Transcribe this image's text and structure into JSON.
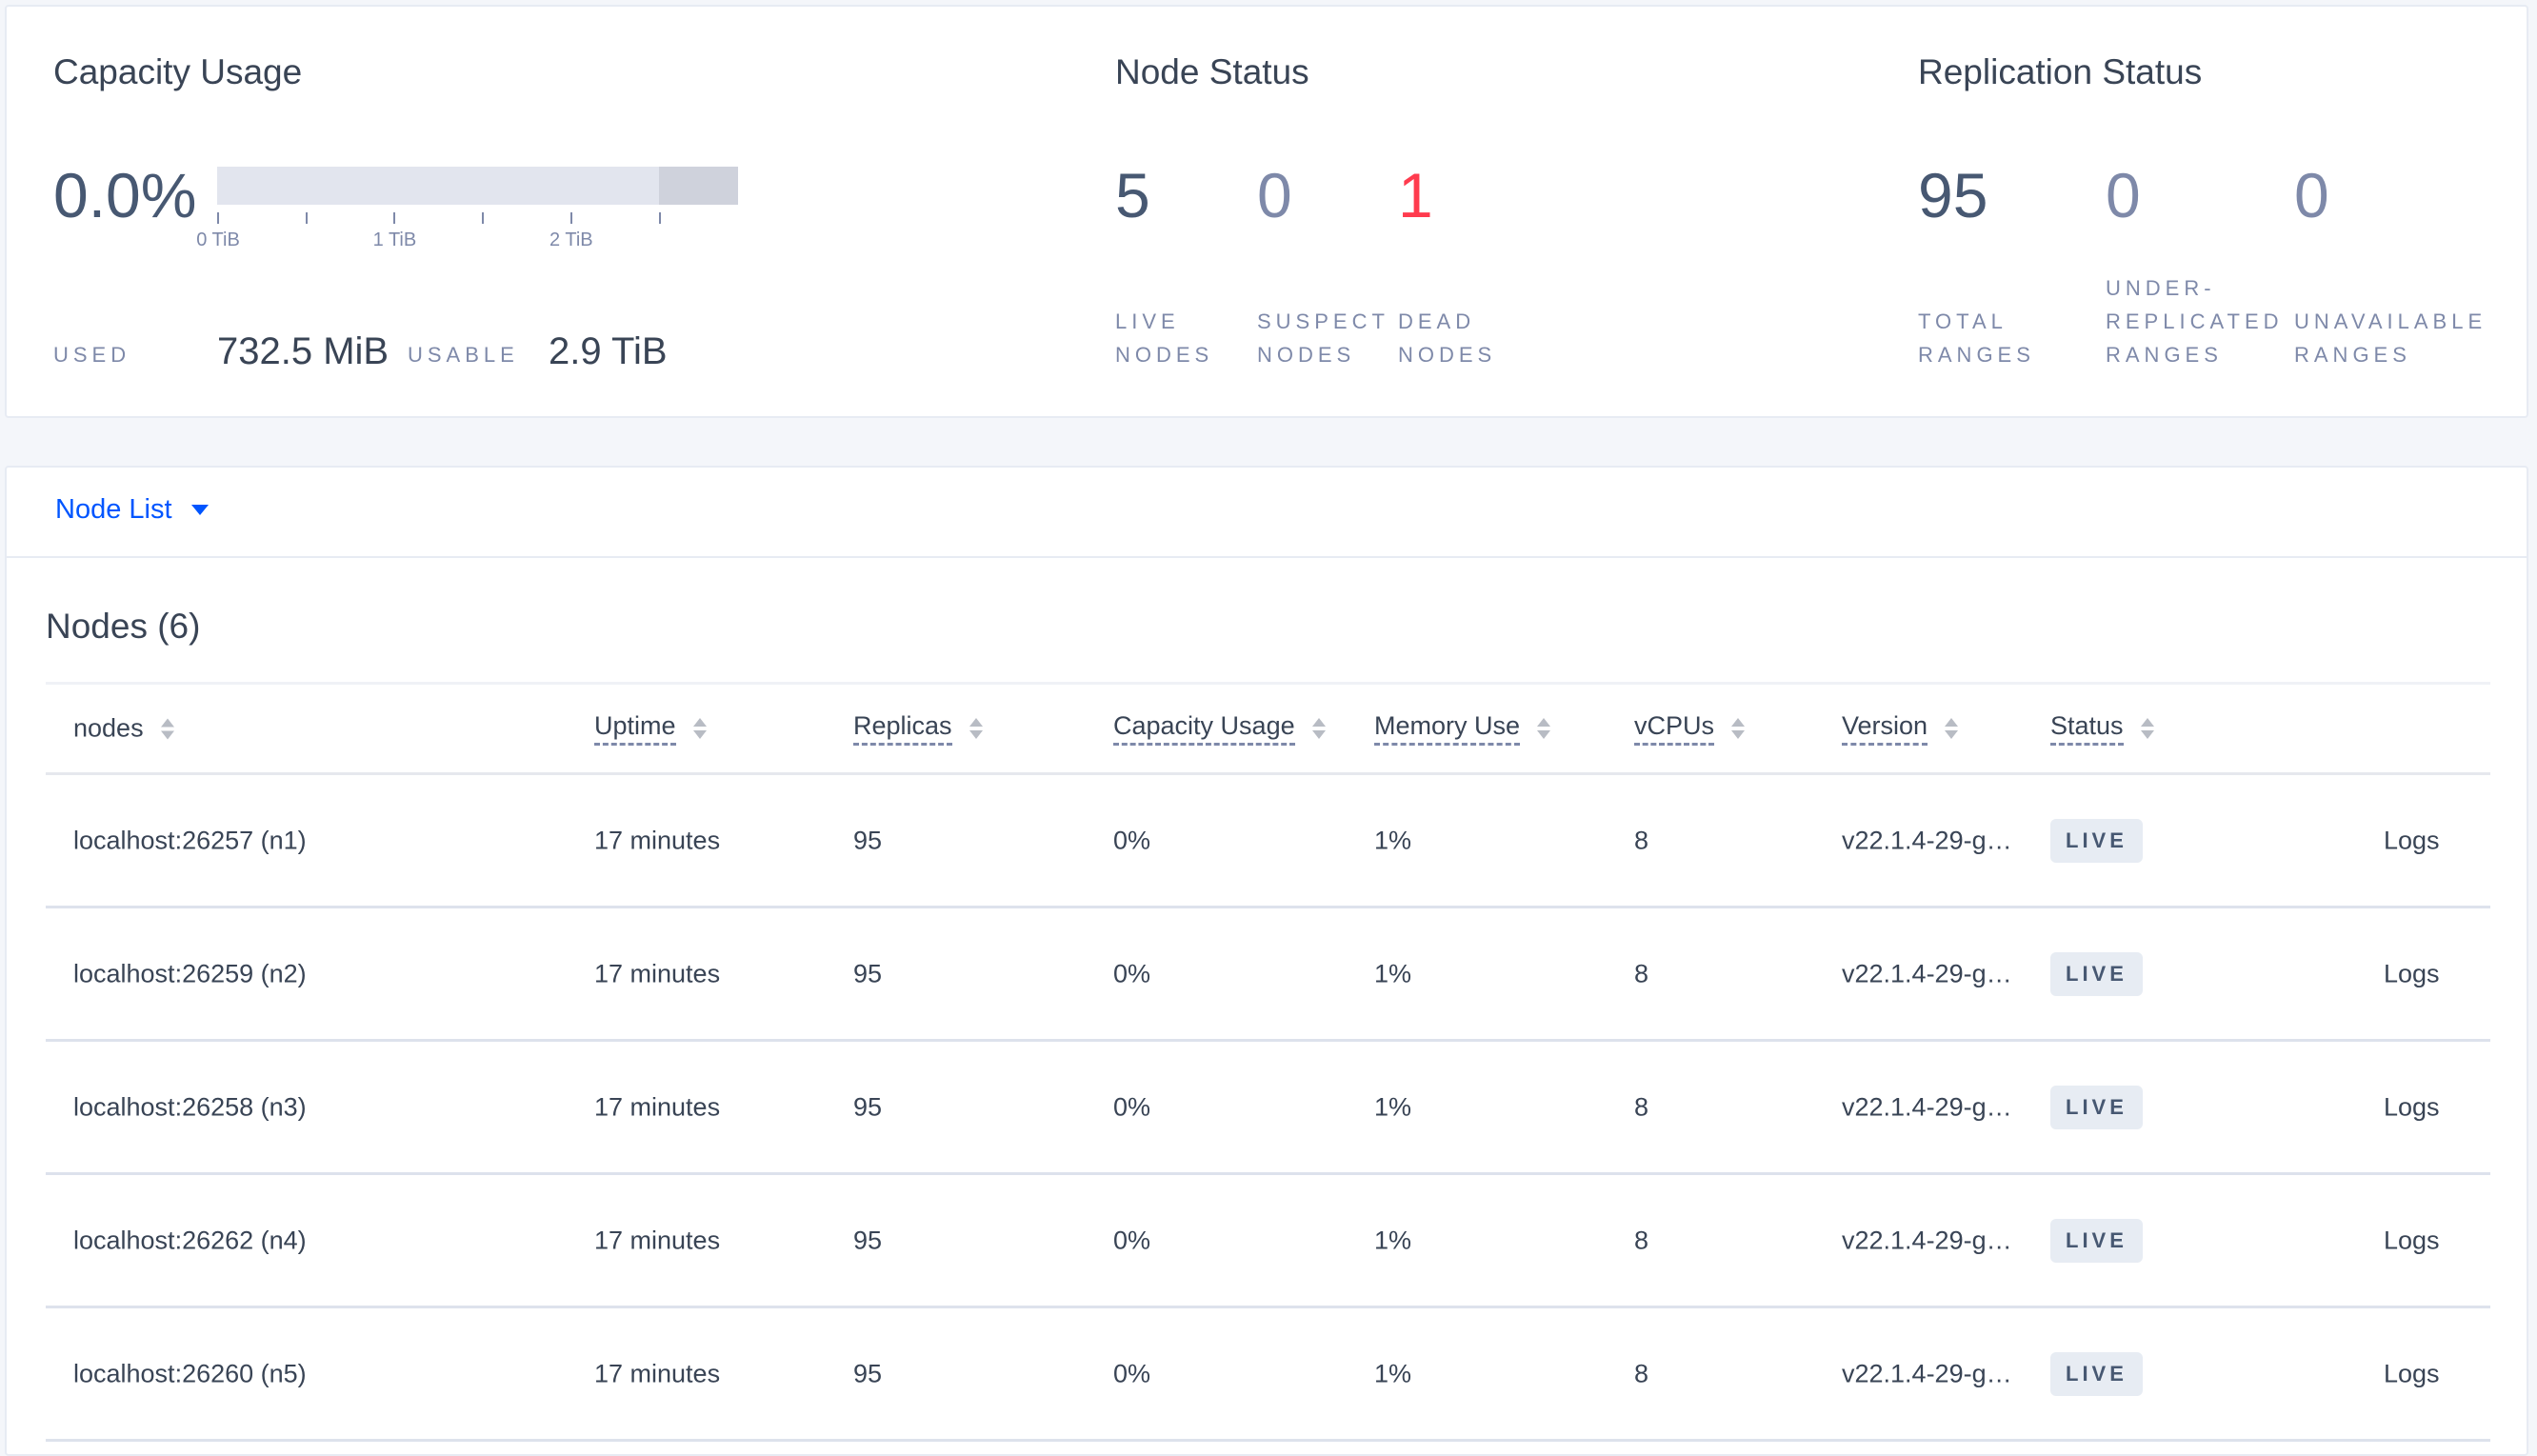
{
  "capacity": {
    "title": "Capacity Usage",
    "percent": "0.0%",
    "used_fraction": 0.0,
    "usable_marker_tib": 2.5,
    "axis_max_tib": 2.95,
    "ticks": [
      "0 TiB",
      "1 TiB",
      "2 TiB"
    ],
    "used_label": "USED",
    "used_value": "732.5 MiB",
    "usable_label": "USABLE",
    "usable_value": "2.9 TiB"
  },
  "node_status": {
    "title": "Node Status",
    "stats": [
      {
        "value": "5",
        "l1": "LIVE",
        "l2": "NODES",
        "color": "#475872"
      },
      {
        "value": "0",
        "l1": "SUSPECT",
        "l2": "NODES",
        "color": "#7e89a9"
      },
      {
        "value": "1",
        "l1": "DEAD",
        "l2": "NODES",
        "color": "#ff3b4e"
      }
    ]
  },
  "replication": {
    "title": "Replication Status",
    "stats": [
      {
        "value": "95",
        "l0": "",
        "l1": "TOTAL",
        "l2": "RANGES",
        "color": "#475872"
      },
      {
        "value": "0",
        "l0": "UNDER-",
        "l1": "REPLICATED",
        "l2": "RANGES",
        "color": "#7e89a9"
      },
      {
        "value": "0",
        "l0": "",
        "l1": "UNAVAILABLE",
        "l2": "RANGES",
        "color": "#7e89a9"
      }
    ]
  },
  "node_list": {
    "dropdown_label": "Node List",
    "heading": "Nodes (6)",
    "columns": [
      "nodes",
      "Uptime",
      "Replicas",
      "Capacity Usage",
      "Memory Use",
      "vCPUs",
      "Version",
      "Status"
    ],
    "rows": [
      {
        "node": "localhost:26257 (n1)",
        "uptime": "17 minutes",
        "replicas": "95",
        "capacity": "0%",
        "memory": "1%",
        "vcpus": "8",
        "version": "v22.1.4-29-g…",
        "status": "LIVE",
        "logs": "Logs"
      },
      {
        "node": "localhost:26259 (n2)",
        "uptime": "17 minutes",
        "replicas": "95",
        "capacity": "0%",
        "memory": "1%",
        "vcpus": "8",
        "version": "v22.1.4-29-g…",
        "status": "LIVE",
        "logs": "Logs"
      },
      {
        "node": "localhost:26258 (n3)",
        "uptime": "17 minutes",
        "replicas": "95",
        "capacity": "0%",
        "memory": "1%",
        "vcpus": "8",
        "version": "v22.1.4-29-g…",
        "status": "LIVE",
        "logs": "Logs"
      },
      {
        "node": "localhost:26262 (n4)",
        "uptime": "17 minutes",
        "replicas": "95",
        "capacity": "0%",
        "memory": "1%",
        "vcpus": "8",
        "version": "v22.1.4-29-g…",
        "status": "LIVE",
        "logs": "Logs"
      },
      {
        "node": "localhost:26260 (n5)",
        "uptime": "17 minutes",
        "replicas": "95",
        "capacity": "0%",
        "memory": "1%",
        "vcpus": "8",
        "version": "v22.1.4-29-g…",
        "status": "LIVE",
        "logs": "Logs"
      }
    ]
  }
}
